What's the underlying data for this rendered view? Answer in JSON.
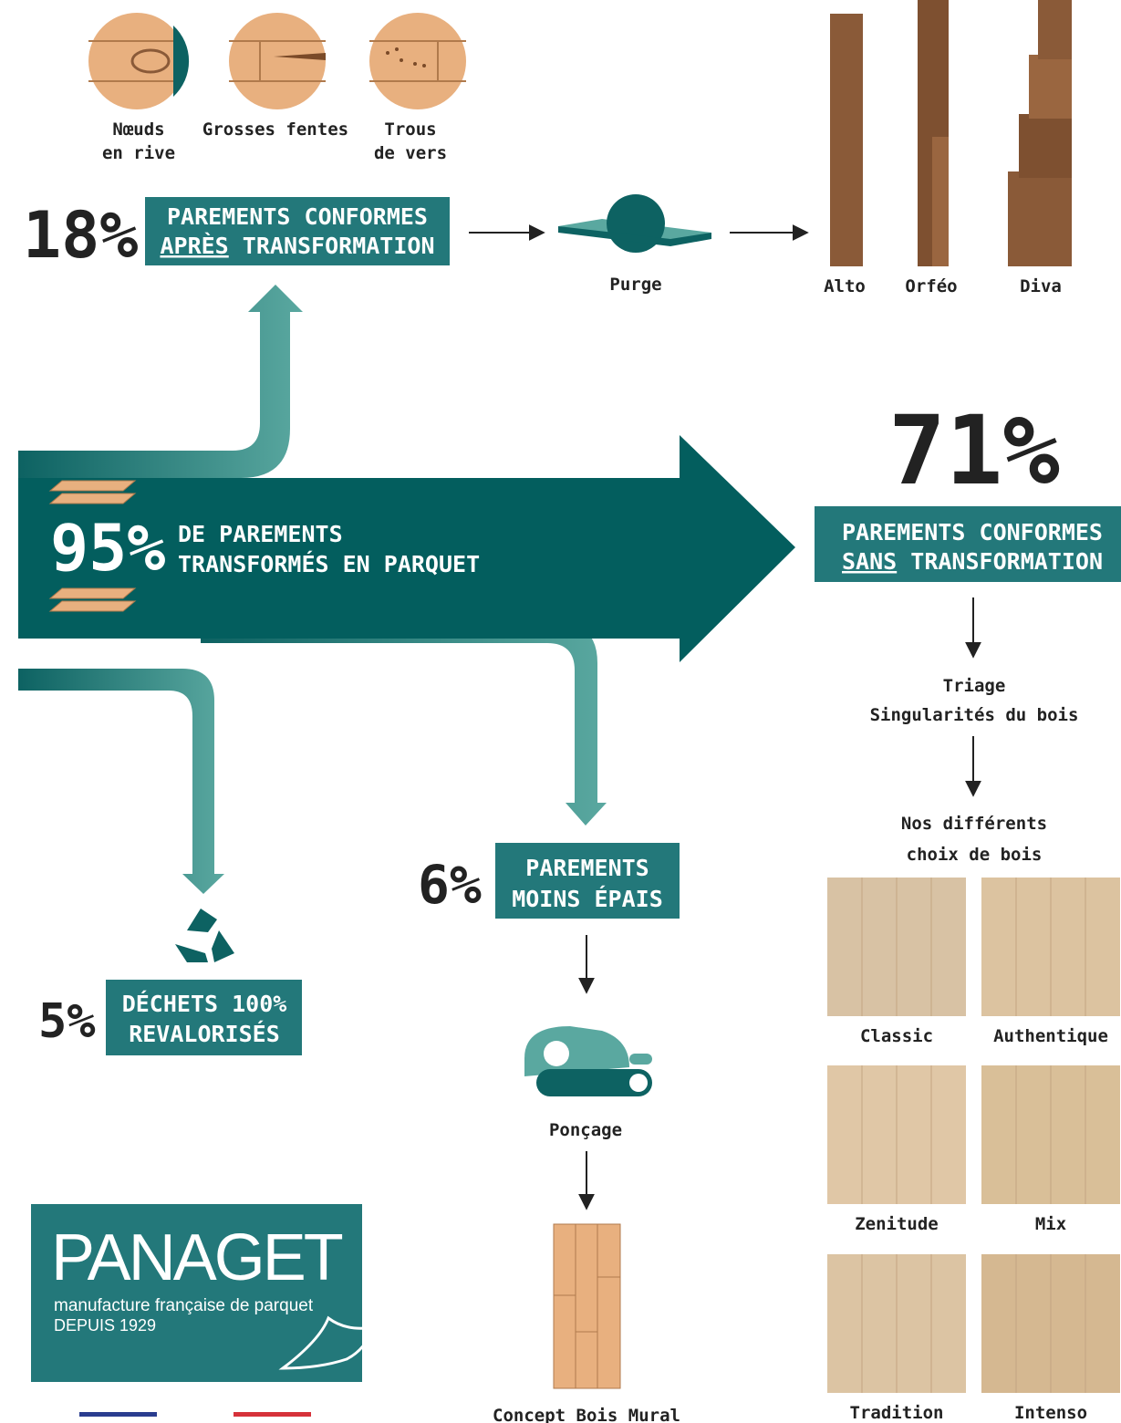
{
  "defects": [
    [
      "Nœuds",
      "en rive"
    ],
    [
      "Grosses fentes"
    ],
    [
      "Trous",
      "de vers"
    ]
  ],
  "branch_18": {
    "percent": "18%",
    "line1": "PAREMENTS CONFORMES",
    "underlined": "APRÈS",
    "rest": "TRANSFORMATION",
    "step": "Purge",
    "products": [
      "Alto",
      "Orféo",
      "Diva"
    ]
  },
  "main": {
    "percent": "95%",
    "lines": [
      "DE PAREMENTS",
      "TRANSFORMÉS EN PARQUET"
    ]
  },
  "branch_71": {
    "percent": "71%",
    "line1": "PAREMENTS CONFORMES",
    "underlined": "SANS",
    "rest": "TRANSFORMATION",
    "step": "Triage",
    "step_sub": "Singularités du bois",
    "choices_title": [
      "Nos différents",
      "choix de bois"
    ],
    "woods": [
      "Classic",
      "Authentique",
      "Zenitude",
      "Mix",
      "Tradition",
      "Intenso"
    ]
  },
  "branch_6": {
    "percent": "6%",
    "lines": [
      "PAREMENTS",
      "MOINS ÉPAIS"
    ],
    "step": "Ponçage",
    "product": "Concept Bois Mural"
  },
  "branch_5": {
    "percent": "5%",
    "lines": [
      "DÉCHETS 100%",
      "REVALORISÉS"
    ]
  },
  "logo": {
    "name": "PANAGET",
    "tagline": "manufacture française de parquet",
    "since": "DEPUIS 1929"
  }
}
